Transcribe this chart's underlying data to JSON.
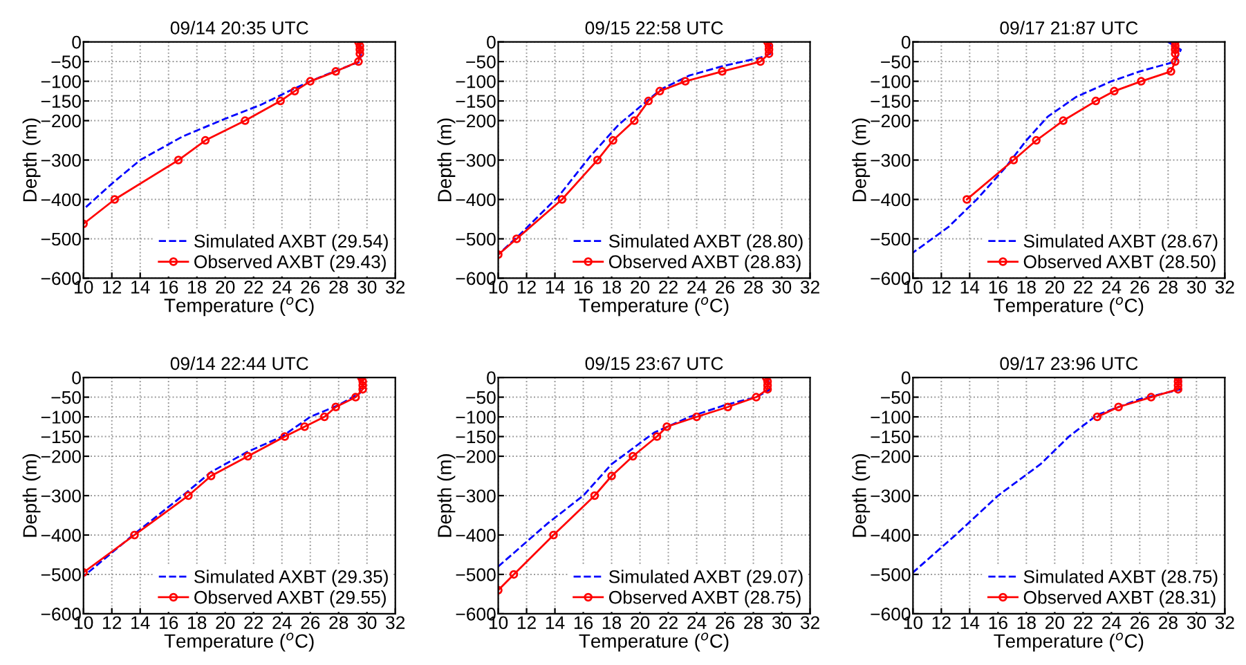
{
  "chart_data": [
    {
      "type": "line",
      "title": "09/14 20:35 UTC",
      "xlabel": "Temperature ($^{o}$C)",
      "ylabel": "Depth (m)",
      "xlim": [
        10,
        32
      ],
      "xticks": [
        10,
        12,
        14,
        16,
        18,
        20,
        22,
        24,
        26,
        28,
        30,
        32
      ],
      "ylim": [
        -600,
        0
      ],
      "yticks": [
        {
          "value": -600,
          "label": "−600"
        },
        {
          "value": -500,
          "label": "−500"
        },
        {
          "value": -400,
          "label": "−400"
        },
        {
          "value": -300,
          "label": "−300"
        },
        {
          "value": -200,
          "label": "−200"
        },
        {
          "value": -150,
          "label": "−150"
        },
        {
          "value": -100,
          "label": "−100"
        },
        {
          "value": -50,
          "label": "−50"
        },
        0
      ],
      "grid": true,
      "legend": "bottom right",
      "series": [
        {
          "name": "Simulated AXBT (29.54)",
          "color": "#0000ff",
          "line_style": "dashed",
          "marker": "none",
          "x": [
            29.5,
            29.6,
            29.5,
            27,
            26,
            24.5,
            22.5,
            20,
            17,
            14,
            12,
            10
          ],
          "values": [
            0,
            -20,
            -50,
            -85,
            -100,
            -125,
            -160,
            -195,
            -240,
            -300,
            -360,
            -425
          ]
        },
        {
          "name": "Observed AXBT (29.43)",
          "color": "#ff0000",
          "line_style": "solid",
          "marker": "circle",
          "x": [
            29.4,
            29.5,
            29.5,
            29.5,
            29.4,
            27.8,
            26,
            24.9,
            23.9,
            21.4,
            18.6,
            16.7,
            12.2,
            10
          ],
          "values": [
            0,
            -10,
            -20,
            -30,
            -50,
            -75,
            -100,
            -125,
            -150,
            -200,
            -250,
            -300,
            -400,
            -462
          ]
        }
      ]
    },
    {
      "type": "line",
      "title": "09/15 22:58 UTC",
      "xlabel": "Temperature ($^{o}$C)",
      "ylabel": "Depth (m)",
      "xlim": [
        10,
        32
      ],
      "xticks": [
        10,
        12,
        14,
        16,
        18,
        20,
        22,
        24,
        26,
        28,
        30,
        32
      ],
      "ylim": [
        -600,
        0
      ],
      "yticks": [
        {
          "value": -600,
          "label": "−600"
        },
        {
          "value": -500,
          "label": "−500"
        },
        {
          "value": -400,
          "label": "−400"
        },
        {
          "value": -300,
          "label": "−300"
        },
        {
          "value": -200,
          "label": "−200"
        },
        {
          "value": -150,
          "label": "−150"
        },
        {
          "value": -100,
          "label": "−100"
        },
        {
          "value": -50,
          "label": "−50"
        },
        0
      ],
      "grid": true,
      "legend": "bottom right",
      "series": [
        {
          "name": "Simulated AXBT (28.80)",
          "color": "#0000ff",
          "line_style": "dashed",
          "marker": "none",
          "x": [
            29.2,
            29.2,
            28.5,
            26,
            23.5,
            21.5,
            20.5,
            18.5,
            16.5,
            14.3,
            11.5,
            10
          ],
          "values": [
            0,
            -30,
            -40,
            -60,
            -85,
            -120,
            -150,
            -210,
            -290,
            -390,
            -490,
            -540
          ]
        },
        {
          "name": "Observed AXBT (28.83)",
          "color": "#ff0000",
          "line_style": "solid",
          "marker": "circle",
          "x": [
            29,
            29.1,
            29.1,
            29.1,
            28.5,
            25.8,
            23.2,
            21.4,
            20.6,
            19.6,
            18.1,
            17,
            14.5,
            11.3,
            10
          ],
          "values": [
            0,
            -10,
            -20,
            -30,
            -50,
            -75,
            -100,
            -125,
            -150,
            -200,
            -250,
            -300,
            -400,
            -500,
            -540
          ]
        }
      ]
    },
    {
      "type": "line",
      "title": "09/17 21:87 UTC",
      "xlabel": "Temperature ($^{o}$C)",
      "ylabel": "Depth (m)",
      "xlim": [
        10,
        32
      ],
      "xticks": [
        10,
        12,
        14,
        16,
        18,
        20,
        22,
        24,
        26,
        28,
        30,
        32
      ],
      "ylim": [
        -600,
        0
      ],
      "yticks": [
        {
          "value": -600,
          "label": "−600"
        },
        {
          "value": -500,
          "label": "−500"
        },
        {
          "value": -400,
          "label": "−400"
        },
        {
          "value": -300,
          "label": "−300"
        },
        {
          "value": -200,
          "label": "−200"
        },
        {
          "value": -150,
          "label": "−150"
        },
        {
          "value": -100,
          "label": "−100"
        },
        {
          "value": -50,
          "label": "−50"
        },
        0
      ],
      "grid": true,
      "legend": "bottom right",
      "series": [
        {
          "name": "Simulated AXBT (28.67)",
          "color": "#0000ff",
          "line_style": "dashed",
          "marker": "none",
          "x": [
            28,
            28.9,
            28.5,
            26,
            24,
            21.5,
            19.5,
            18,
            16.5,
            14.5,
            12.5,
            10
          ],
          "values": [
            0,
            -20,
            -50,
            -75,
            -100,
            -140,
            -190,
            -250,
            -320,
            -400,
            -470,
            -535
          ]
        },
        {
          "name": "Observed AXBT (28.50)",
          "color": "#ff0000",
          "line_style": "solid",
          "marker": "circle",
          "x": [
            28.5,
            28.5,
            28.5,
            28.5,
            28.5,
            28.2,
            26.1,
            24.2,
            22.9,
            20.6,
            18.7,
            17.1,
            13.8
          ],
          "values": [
            0,
            -10,
            -20,
            -30,
            -50,
            -75,
            -100,
            -125,
            -150,
            -200,
            -250,
            -300,
            -400
          ]
        }
      ]
    },
    {
      "type": "line",
      "title": "09/14 22:44 UTC",
      "xlabel": "Temperature ($^{o}$C)",
      "ylabel": "Depth (m)",
      "xlim": [
        10,
        32
      ],
      "xticks": [
        10,
        12,
        14,
        16,
        18,
        20,
        22,
        24,
        26,
        28,
        30,
        32
      ],
      "ylim": [
        -600,
        0
      ],
      "yticks": [
        {
          "value": -600,
          "label": "−600"
        },
        {
          "value": -500,
          "label": "−500"
        },
        {
          "value": -400,
          "label": "−400"
        },
        {
          "value": -300,
          "label": "−300"
        },
        {
          "value": -200,
          "label": "−200"
        },
        {
          "value": -150,
          "label": "−150"
        },
        {
          "value": -100,
          "label": "−100"
        },
        {
          "value": -50,
          "label": "−50"
        },
        0
      ],
      "grid": true,
      "legend": "bottom right",
      "series": [
        {
          "name": "Simulated AXBT (29.35)",
          "color": "#0000ff",
          "line_style": "dashed",
          "marker": "none",
          "x": [
            29.5,
            29.5,
            28,
            26,
            24,
            21.5,
            19,
            17,
            13.5,
            10
          ],
          "values": [
            0,
            -40,
            -70,
            -100,
            -150,
            -190,
            -240,
            -300,
            -400,
            -505
          ]
        },
        {
          "name": "Observed AXBT (29.55)",
          "color": "#ff0000",
          "line_style": "solid",
          "marker": "circle",
          "x": [
            29.6,
            29.7,
            29.7,
            29.7,
            29.2,
            27.8,
            27,
            25.6,
            24.2,
            21.6,
            19,
            17.4,
            13.6,
            10
          ],
          "values": [
            0,
            -10,
            -20,
            -30,
            -50,
            -75,
            -100,
            -125,
            -150,
            -200,
            -250,
            -300,
            -400,
            -495
          ]
        }
      ]
    },
    {
      "type": "line",
      "title": "09/15 23:67 UTC",
      "xlabel": "Temperature ($^{o}$C)",
      "ylabel": "Depth (m)",
      "xlim": [
        10,
        32
      ],
      "xticks": [
        10,
        12,
        14,
        16,
        18,
        20,
        22,
        24,
        26,
        28,
        30,
        32
      ],
      "ylim": [
        -600,
        0
      ],
      "yticks": [
        {
          "value": -600,
          "label": "−600"
        },
        {
          "value": -500,
          "label": "−500"
        },
        {
          "value": -400,
          "label": "−400"
        },
        {
          "value": -300,
          "label": "−300"
        },
        {
          "value": -200,
          "label": "−200"
        },
        {
          "value": -150,
          "label": "−150"
        },
        {
          "value": -100,
          "label": "−100"
        },
        {
          "value": -50,
          "label": "−50"
        },
        0
      ],
      "grid": true,
      "legend": "bottom right",
      "series": [
        {
          "name": "Simulated AXBT (29.07)",
          "color": "#0000ff",
          "line_style": "dashed",
          "marker": "none",
          "x": [
            29,
            29.2,
            28.2,
            26,
            23.5,
            21,
            18,
            16,
            13.5,
            10
          ],
          "values": [
            0,
            -30,
            -50,
            -70,
            -100,
            -140,
            -220,
            -300,
            -370,
            -480
          ]
        },
        {
          "name": "Observed AXBT (28.75)",
          "color": "#ff0000",
          "line_style": "solid",
          "marker": "circle",
          "x": [
            28.9,
            29,
            29,
            29,
            28.2,
            26.2,
            24,
            21.9,
            21.2,
            19.5,
            18,
            16.8,
            13.9,
            11.1,
            10
          ],
          "values": [
            0,
            -10,
            -20,
            -30,
            -50,
            -75,
            -100,
            -125,
            -150,
            -200,
            -250,
            -300,
            -400,
            -500,
            -540
          ]
        }
      ]
    },
    {
      "type": "line",
      "title": "09/17 23:96 UTC",
      "xlabel": "Temperature ($^{o}$C)",
      "ylabel": "Depth (m)",
      "xlim": [
        10,
        32
      ],
      "xticks": [
        10,
        12,
        14,
        16,
        18,
        20,
        22,
        24,
        26,
        28,
        30,
        32
      ],
      "ylim": [
        -600,
        0
      ],
      "yticks": [
        {
          "value": -600,
          "label": "−600"
        },
        {
          "value": -500,
          "label": "−500"
        },
        {
          "value": -400,
          "label": "−400"
        },
        {
          "value": -300,
          "label": "−300"
        },
        {
          "value": -200,
          "label": "−200"
        },
        {
          "value": -150,
          "label": "−150"
        },
        {
          "value": -100,
          "label": "−100"
        },
        {
          "value": -50,
          "label": "−50"
        },
        0
      ],
      "grid": true,
      "legend": "bottom right",
      "series": [
        {
          "name": "Simulated AXBT (28.75)",
          "color": "#0000ff",
          "line_style": "dashed",
          "marker": "none",
          "x": [
            28.9,
            28.9,
            26,
            23,
            21,
            19,
            16,
            13,
            10
          ],
          "values": [
            0,
            -30,
            -55,
            -95,
            -150,
            -220,
            -300,
            -400,
            -495
          ]
        },
        {
          "name": "Observed AXBT (28.31)",
          "color": "#ff0000",
          "line_style": "solid",
          "marker": "circle",
          "x": [
            28.7,
            28.7,
            28.7,
            28.7,
            26.8,
            24.5,
            23
          ],
          "values": [
            0,
            -10,
            -20,
            -30,
            -50,
            -75,
            -100
          ]
        }
      ]
    }
  ]
}
